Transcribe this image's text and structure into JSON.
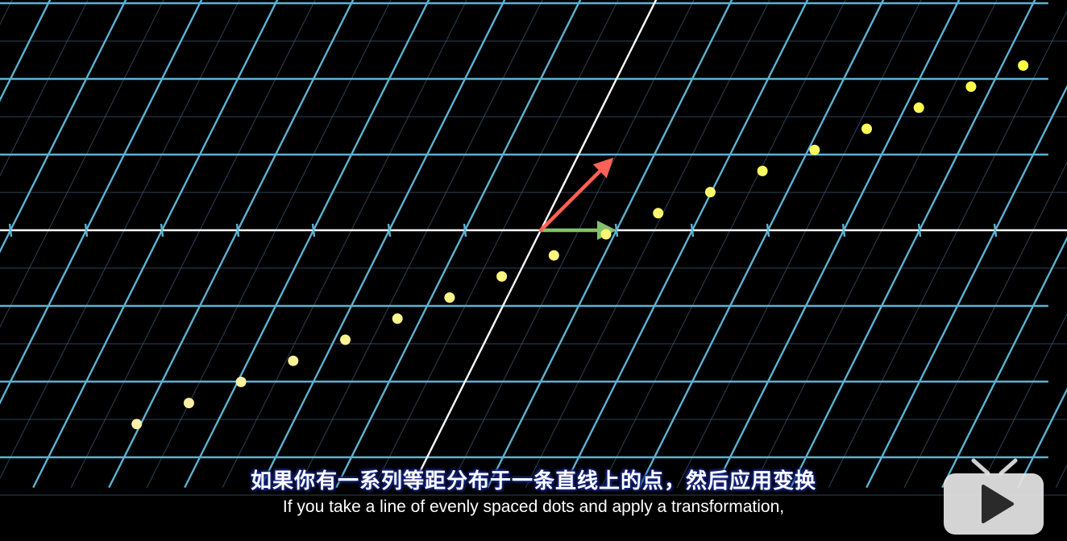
{
  "colors": {
    "background": "#000000",
    "grid_line": "#5cb3d4",
    "grid_faint": "#3f5f78",
    "axis": "#ffffff",
    "i_hat": "#83c167",
    "j_hat": "#fc6255",
    "dots": "#ffff66",
    "subtitle_outline": "#1b2a8a"
  },
  "transform": {
    "i_hat": [
      1,
      0
    ],
    "j_hat": [
      0.5,
      1
    ],
    "dot_step": [
      0.7,
      0.28
    ]
  },
  "dots": {
    "count": 18
  },
  "subtitles": {
    "chinese": "如果你有一系列等距分布于一条直线上的点，然后应用变换",
    "english": "If you take a line of evenly spaced dots and apply a transformation,"
  },
  "logo": {
    "icon": "tv-play-icon"
  }
}
